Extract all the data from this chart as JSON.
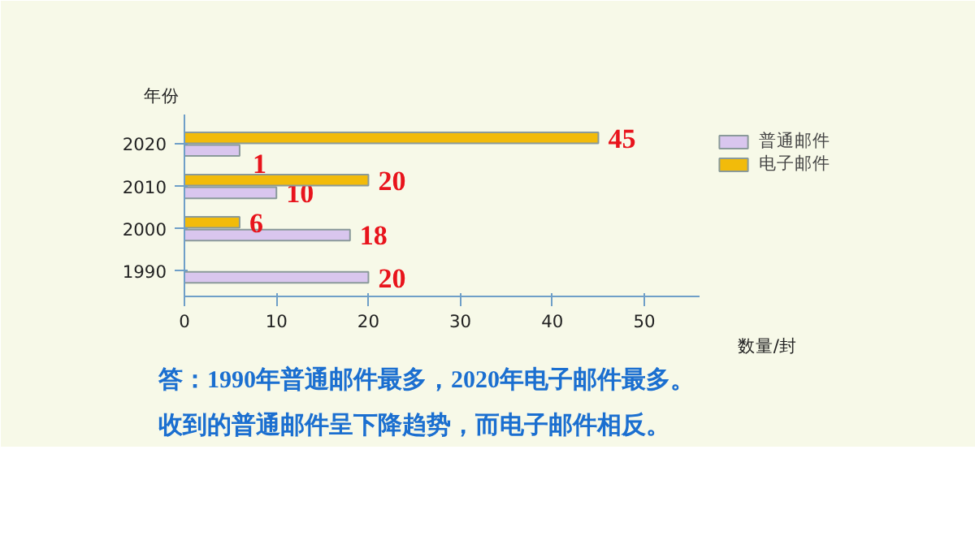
{
  "chart_data": {
    "type": "bar",
    "orientation": "horizontal",
    "categories": [
      "2020",
      "2010",
      "2000",
      "1990"
    ],
    "series": [
      {
        "name": "普通邮件",
        "color": "#d9c6ee",
        "values": [
          6,
          10,
          18,
          20
        ],
        "value_labels": [
          null,
          "10",
          "18",
          "20"
        ]
      },
      {
        "name": "电子邮件",
        "color": "#f2bb0a",
        "values": [
          45,
          20,
          6,
          null
        ],
        "value_labels": [
          "45",
          "20",
          "6",
          null
        ]
      }
    ],
    "xlim": [
      0,
      56
    ],
    "xticks": [
      0,
      10,
      20,
      30,
      40,
      50
    ],
    "xlabel": "数量/封",
    "ylabel": "年份",
    "legend": "top right",
    "grid": false,
    "annotations": [
      "1",
      "答：1990年普通邮件最多，2020年电子邮件最多。",
      "收到的普通邮件呈下降趋势，而电子邮件相反。"
    ]
  }
}
